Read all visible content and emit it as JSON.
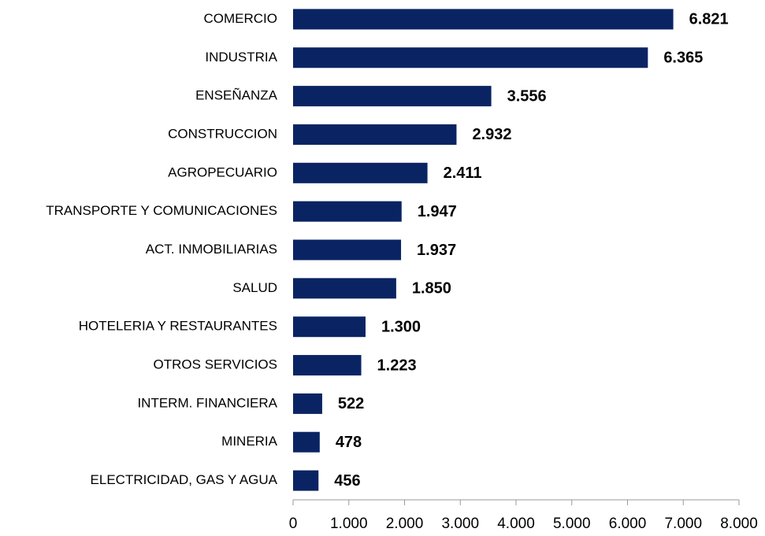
{
  "chart_data": {
    "type": "bar",
    "orientation": "horizontal",
    "categories": [
      "COMERCIO",
      "INDUSTRIA",
      "ENSEÑANZA",
      "CONSTRUCCION",
      "AGROPECUARIO",
      "TRANSPORTE Y COMUNICACIONES",
      "ACT. INMOBILIARIAS",
      "SALUD",
      "HOTELERIA Y RESTAURANTES",
      "OTROS SERVICIOS",
      "INTERM. FINANCIERA",
      "MINERIA",
      "ELECTRICIDAD, GAS Y AGUA"
    ],
    "values": [
      6821,
      6365,
      3556,
      2932,
      2411,
      1947,
      1937,
      1850,
      1300,
      1223,
      522,
      478,
      456
    ],
    "value_labels": [
      "6.821",
      "6.365",
      "3.556",
      "2.932",
      "2.411",
      "1.947",
      "1.937",
      "1.850",
      "1.300",
      "1.223",
      "522",
      "478",
      "456"
    ],
    "color": "#0a2463",
    "xlim": [
      0,
      8000
    ],
    "xticks": [
      0,
      {
        "value": 1000,
        "label": "1.000"
      },
      {
        "value": 2000,
        "label": "2.000"
      },
      {
        "value": 3000,
        "label": "3.000"
      },
      {
        "value": 4000,
        "label": "4.000"
      },
      {
        "value": 5000,
        "label": "5.000"
      },
      {
        "value": 6000,
        "label": "6.000"
      },
      {
        "value": 7000,
        "label": "7.000"
      },
      {
        "value": 8000,
        "label": "8.000"
      }
    ]
  }
}
